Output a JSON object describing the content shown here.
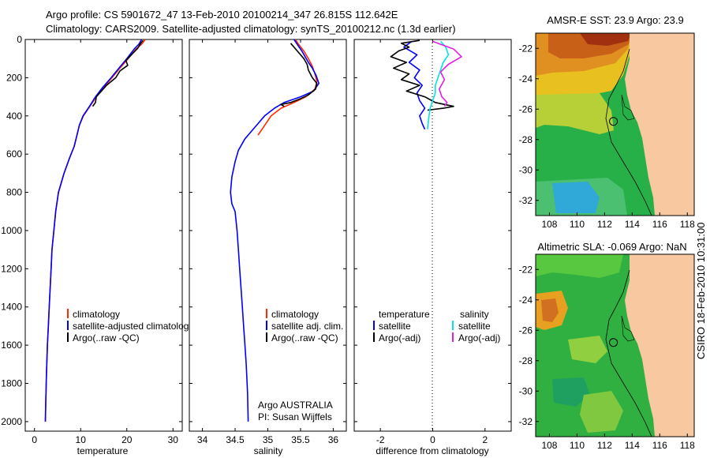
{
  "header": {
    "line1": "Argo profile: CS 5901672_47 13-Feb-2010 20100214_347 26.815S 112.642E",
    "line2": "Climatology: CARS2009. Satellite-adjusted climatology: synTS_20100212.nc (1.3d earlier)"
  },
  "side_label": "CSIRO 18-Feb-2010 10:31:00",
  "chart_data": [
    {
      "id": "temperature",
      "type": "line",
      "xlabel": "temperature",
      "xlim": [
        -2,
        32
      ],
      "ylim": [
        0,
        2050
      ],
      "y_reversed": true,
      "xticks": [
        0,
        10,
        20,
        30
      ],
      "yticks": [
        0,
        200,
        400,
        600,
        800,
        1000,
        1200,
        1400,
        1600,
        1800,
        2000
      ],
      "legend": [
        "climatology",
        "satellite-adjusted climatology",
        "Argo(..raw -QC)"
      ],
      "series": [
        {
          "name": "climatology",
          "color": "#ff2a00",
          "x": [
            24.0,
            23.2,
            22.0,
            20.3,
            18.5,
            16.8,
            15.0,
            13.4,
            12.0,
            10.6,
            9.7,
            9.2,
            8.6,
            7.6,
            6.4,
            5.2,
            4.6,
            4.2,
            3.8,
            3.6,
            3.4,
            3.2,
            3.0,
            2.8,
            2.6,
            2.45,
            2.35
          ],
          "y": [
            0,
            25,
            50,
            100,
            150,
            200,
            250,
            300,
            350,
            400,
            450,
            500,
            560,
            620,
            700,
            800,
            900,
            1000,
            1100,
            1200,
            1300,
            1400,
            1500,
            1600,
            1750,
            1900,
            2000
          ]
        },
        {
          "name": "satellite-adjusted climatology",
          "color": "#0000ff",
          "x": [
            23.2,
            22.6,
            21.6,
            20.0,
            18.3,
            16.6,
            14.8,
            13.2,
            11.9,
            10.5,
            9.7,
            9.2,
            8.6,
            7.6,
            6.4,
            5.2,
            4.6,
            4.2,
            3.8,
            3.6,
            3.4,
            3.2,
            3.0,
            2.8,
            2.6,
            2.45,
            2.35
          ],
          "y": [
            0,
            25,
            50,
            100,
            150,
            200,
            250,
            300,
            350,
            400,
            450,
            500,
            560,
            620,
            700,
            800,
            900,
            1000,
            1100,
            1200,
            1300,
            1400,
            1500,
            1600,
            1750,
            1900,
            2000
          ]
        },
        {
          "name": "Argo(..raw -QC)",
          "color": "#000000",
          "x": [
            23.5,
            23.0,
            22.4,
            21.2,
            19.8,
            20.2,
            18.5,
            17.6,
            15.6,
            14.5,
            13.4,
            13.2,
            12.6
          ],
          "y": [
            5,
            20,
            45,
            75,
            110,
            135,
            165,
            200,
            240,
            270,
            300,
            330,
            350
          ]
        }
      ]
    },
    {
      "id": "salinity",
      "type": "line",
      "xlabel": "salinity",
      "xlim": [
        33.8,
        36.2
      ],
      "ylim": [
        0,
        2050
      ],
      "y_reversed": true,
      "xticks": [
        34,
        34.5,
        35,
        35.5,
        36
      ],
      "yticks": [
        0,
        200,
        400,
        600,
        800,
        1000,
        1200,
        1400,
        1600,
        1800,
        2000
      ],
      "legend": [
        "climatology",
        "satellite adj. clim.",
        "Argo(..raw -QC)"
      ],
      "annotation": [
        "Argo AUSTRALIA",
        "PI: Susan Wijffels"
      ],
      "series": [
        {
          "name": "climatology",
          "color": "#ff2a00",
          "x": [
            35.42,
            35.48,
            35.55,
            35.62,
            35.68,
            35.72,
            35.75,
            35.72,
            35.58,
            35.4,
            35.2,
            35.05,
            34.95,
            34.85
          ],
          "y": [
            0,
            30,
            60,
            100,
            140,
            180,
            220,
            260,
            300,
            330,
            360,
            400,
            450,
            500
          ]
        },
        {
          "name": "satellite adj. clim.",
          "color": "#0000ff",
          "x": [
            35.4,
            35.46,
            35.52,
            35.57,
            35.62,
            35.68,
            35.74,
            35.78,
            35.7,
            35.5,
            35.25,
            35.1,
            34.95,
            34.85,
            34.75,
            34.65,
            34.55,
            34.5,
            34.45,
            34.43,
            34.45,
            34.5,
            34.53,
            34.55,
            34.57,
            34.59,
            34.61,
            34.63,
            34.65,
            34.67,
            34.69,
            34.7
          ],
          "y": [
            0,
            30,
            60,
            90,
            120,
            150,
            190,
            230,
            270,
            300,
            330,
            360,
            400,
            440,
            480,
            520,
            580,
            640,
            720,
            800,
            860,
            900,
            1000,
            1100,
            1200,
            1300,
            1400,
            1500,
            1600,
            1700,
            1850,
            2000
          ]
        },
        {
          "name": "Argo(..raw -QC)",
          "color": "#000000",
          "x": [
            35.35,
            35.45,
            35.55,
            35.6,
            35.62,
            35.68,
            35.75,
            35.73,
            35.62,
            35.5,
            35.35,
            35.2,
            35.25
          ],
          "y": [
            20,
            60,
            100,
            130,
            160,
            200,
            230,
            260,
            290,
            310,
            330,
            340,
            350
          ]
        }
      ]
    },
    {
      "id": "difference",
      "type": "line",
      "xlabel": "difference from climatology",
      "xlim": [
        -3,
        3
      ],
      "ylim": [
        0,
        2050
      ],
      "y_reversed": true,
      "xticks": [
        -2,
        0,
        2
      ],
      "yticks": [
        0,
        200,
        400,
        600,
        800,
        1000,
        1200,
        1400,
        1600,
        1800,
        2000
      ],
      "zero_line": true,
      "legend_headers": [
        "temperature",
        "salinity"
      ],
      "legend": [
        "satellite",
        "Argo(-adj)",
        "satellite",
        "Argo(-adj)"
      ],
      "series": [
        {
          "name": "satellite",
          "group": "temperature",
          "color": "#0000ff",
          "x": [
            -0.8,
            -1.1,
            -0.6,
            -0.9,
            -0.5,
            -0.7,
            -0.4,
            -0.6,
            -0.5,
            -0.3,
            -0.5,
            -0.4,
            -0.3
          ],
          "y": [
            10,
            40,
            80,
            120,
            160,
            200,
            240,
            280,
            320,
            360,
            400,
            440,
            470
          ]
        },
        {
          "name": "Argo(-adj)",
          "group": "temperature",
          "color": "#000000",
          "x": [
            -0.5,
            -1.2,
            -0.9,
            -1.3,
            -1.6,
            -1.0,
            -1.5,
            -0.9,
            -1.2,
            -0.5,
            -1.0,
            -0.3,
            0.1,
            0.8,
            0.4,
            -0.2
          ],
          "y": [
            5,
            20,
            40,
            60,
            90,
            120,
            150,
            180,
            210,
            240,
            270,
            300,
            330,
            350,
            360,
            370
          ]
        },
        {
          "name": "satellite",
          "group": "salinity",
          "color": "#00e5e5",
          "x": [
            0.3,
            0.5,
            0.6,
            0.4,
            0.3,
            0.2,
            0.1,
            0.1,
            0.0,
            -0.1,
            -0.15,
            -0.2
          ],
          "y": [
            10,
            40,
            80,
            120,
            160,
            200,
            240,
            280,
            320,
            360,
            410,
            470
          ]
        },
        {
          "name": "Argo(-adj)",
          "group": "salinity",
          "color": "#e020e0",
          "x": [
            0.0,
            0.8,
            1.1,
            0.6,
            0.3,
            0.45,
            0.25,
            0.35,
            0.55,
            0.45
          ],
          "y": [
            10,
            50,
            90,
            130,
            170,
            210,
            260,
            300,
            330,
            350
          ]
        }
      ]
    },
    {
      "id": "sst-map",
      "type": "heatmap",
      "title": "AMSR-E SST: 23.9 Argo: 23.9",
      "xlim": [
        107,
        118.5
      ],
      "ylim": [
        -33,
        -21
      ],
      "xticks": [
        108,
        110,
        112,
        114,
        116,
        118
      ],
      "yticks": [
        -22,
        -24,
        -26,
        -28,
        -30,
        -32
      ],
      "marker": [
        112.64,
        -26.8
      ]
    },
    {
      "id": "sla-map",
      "type": "heatmap",
      "title": "Altimetric SLA: -0.069 Argo: NaN",
      "xlim": [
        107,
        118.5
      ],
      "ylim": [
        -33,
        -21
      ],
      "xticks": [
        108,
        110,
        112,
        114,
        116,
        118
      ],
      "yticks": [
        -22,
        -24,
        -26,
        -28,
        -30,
        -32
      ],
      "marker": [
        112.64,
        -26.8
      ]
    }
  ]
}
